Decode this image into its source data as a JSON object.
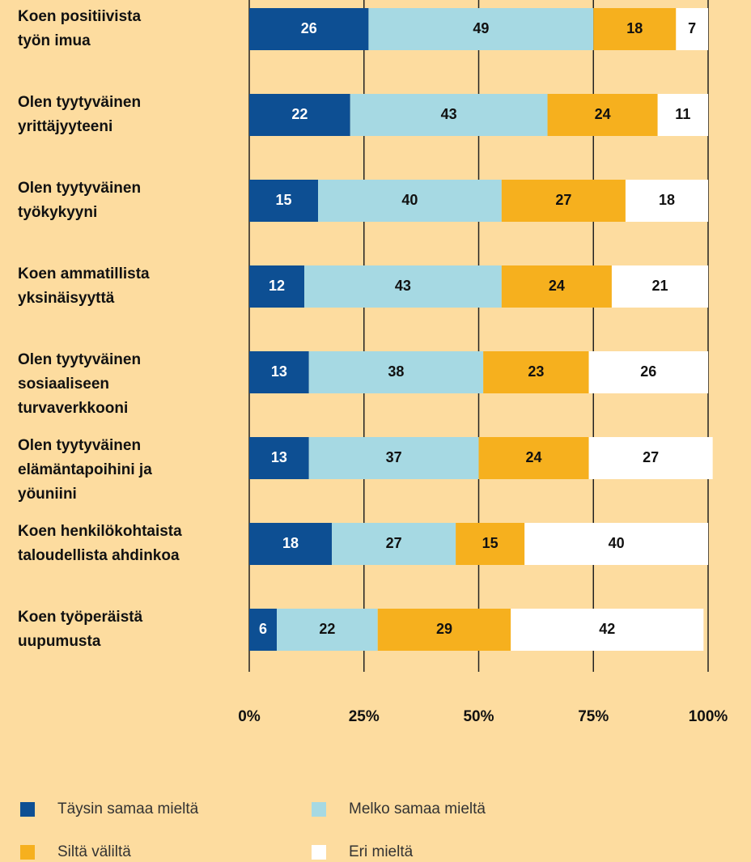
{
  "chart_data": {
    "type": "stacked-bar-horizontal",
    "categories": [
      "Koen positiivista\ntyön imua",
      "Olen tyytyväinen\nyrittäjyyteeni",
      "Olen tyytyväinen\ntyökykyyni",
      "Koen ammatillista\nyksinäisyyttä",
      "Olen tyytyväinen\nsosiaaliseen\nturvaverkkooni",
      "Olen tyytyväinen\nelämäntapoihini ja\nyöuniini",
      "Koen henkilökohtaista\ntaloudellista ahdinkoa",
      "Koen työperäistä\nuupumusta"
    ],
    "series": [
      {
        "name": "Täysin samaa mieltä",
        "color": "#0d4f93",
        "label_color": "#ffffff",
        "values": [
          26,
          22,
          15,
          12,
          13,
          13,
          18,
          6
        ]
      },
      {
        "name": "Melko samaa mieltä",
        "color": "#a6d9e3",
        "label_color": "#111111",
        "values": [
          49,
          43,
          40,
          43,
          38,
          37,
          27,
          22
        ]
      },
      {
        "name": "Siltä väliltä",
        "color": "#f6b01e",
        "label_color": "#111111",
        "values": [
          18,
          24,
          27,
          24,
          23,
          24,
          15,
          29
        ]
      },
      {
        "name": "Eri mieltä",
        "color": "#ffffff",
        "label_color": "#111111",
        "values": [
          7,
          11,
          18,
          21,
          26,
          27,
          40,
          42
        ]
      }
    ],
    "xlim": [
      0,
      100
    ],
    "xticks": [
      {
        "value": 0,
        "label": "0%"
      },
      {
        "value": 25,
        "label": "25%"
      },
      {
        "value": 50,
        "label": "50%"
      },
      {
        "value": 75,
        "label": "75%"
      },
      {
        "value": 100,
        "label": "100%"
      }
    ],
    "grid": true
  }
}
